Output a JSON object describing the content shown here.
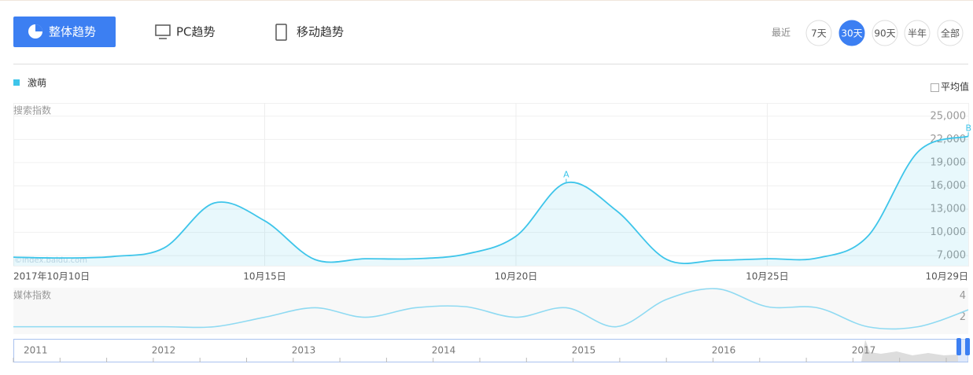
{
  "tabs": [
    "整体趋势",
    "PC趋势",
    "移动趋势"
  ],
  "range_label": "最近",
  "range_buttons": [
    "7天",
    "30天",
    "90天",
    "半年",
    "全部"
  ],
  "average_label": "平均值",
  "watermark": "©index.baidu.com",
  "chart_data": [
    {
      "type": "line",
      "y_label": "搜索指数",
      "categories": [
        "2017年10月10日",
        null,
        null,
        null,
        null,
        "10月15日",
        null,
        null,
        null,
        null,
        "10月20日",
        null,
        null,
        null,
        null,
        "10月25日",
        null,
        null,
        null,
        "10月29日"
      ],
      "series": [
        {
          "name": "激萌",
          "color": "#3ec5ea",
          "values": [
            6800,
            6700,
            6900,
            8000,
            13800,
            11500,
            6500,
            6600,
            6600,
            7200,
            9500,
            16400,
            12800,
            6500,
            6400,
            6600,
            6700,
            9500,
            20400,
            22400
          ]
        }
      ],
      "ylim": [
        5700,
        26700
      ],
      "yticks": [
        {
          "value": 7000,
          "label": "7,000"
        },
        {
          "value": 10000,
          "label": "10,000"
        },
        {
          "value": 13000,
          "label": "13,000"
        },
        {
          "value": 16000,
          "label": "16,000"
        },
        {
          "value": 19000,
          "label": "19,000"
        },
        {
          "value": 22000,
          "label": "22,000"
        },
        {
          "value": 25000,
          "label": "25,000"
        }
      ],
      "annotations": [
        {
          "text": "A",
          "at": 11
        },
        {
          "text": "B",
          "at": 19
        }
      ]
    },
    {
      "type": "line",
      "y_label": "媒体指数",
      "series": [
        {
          "color": "#8fdaf2",
          "values": [
            1.1,
            1.1,
            1.1,
            1.1,
            1.1,
            2.0,
            2.9,
            2.0,
            2.9,
            3.0,
            2.0,
            2.9,
            1.1,
            3.7,
            4.7,
            3.0,
            2.9,
            1.1,
            1.1,
            2.7
          ]
        }
      ],
      "ylim": [
        0.4,
        4.8
      ],
      "yticks": [
        2,
        4
      ]
    }
  ],
  "timeline": {
    "years": [
      "2011",
      "2012",
      "2013",
      "2014",
      "2015",
      "2016",
      "2017"
    ]
  }
}
